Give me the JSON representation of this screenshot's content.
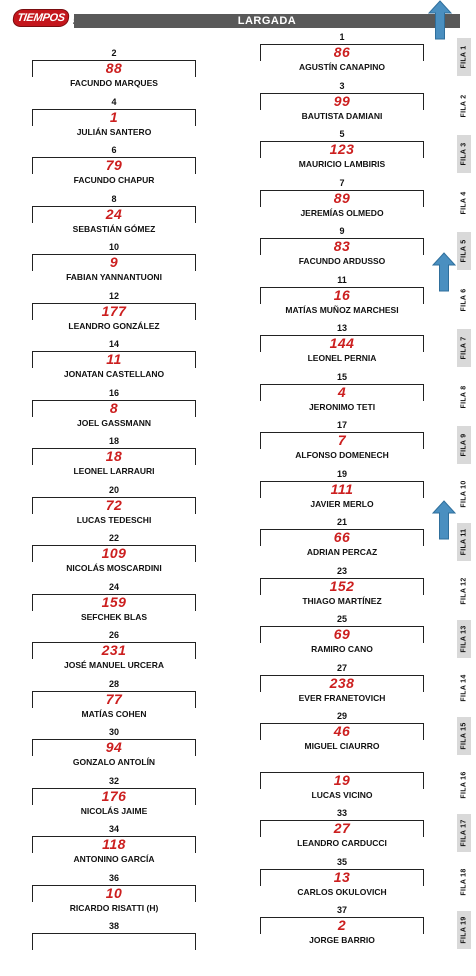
{
  "header": {
    "logo_text": "TIEMPOS",
    "title": "LARGADA"
  },
  "colors": {
    "car_number": "#cc1f1f",
    "header_bar": "#595959",
    "arrow": "#4a8fc0",
    "fila_shade": "#d9d9d9"
  },
  "grid": [
    {
      "pos": "1",
      "num": "86",
      "name": "AGUSTÍN CANAPINO"
    },
    {
      "pos": "2",
      "num": "88",
      "name": "FACUNDO MARQUES"
    },
    {
      "pos": "3",
      "num": "99",
      "name": "BAUTISTA DAMIANI"
    },
    {
      "pos": "4",
      "num": "1",
      "name": "JULIÁN SANTERO"
    },
    {
      "pos": "5",
      "num": "123",
      "name": "MAURICIO LAMBIRIS"
    },
    {
      "pos": "6",
      "num": "79",
      "name": "FACUNDO CHAPUR"
    },
    {
      "pos": "7",
      "num": "89",
      "name": "JEREMÍAS OLMEDO"
    },
    {
      "pos": "8",
      "num": "24",
      "name": "SEBASTIÁN GÓMEZ"
    },
    {
      "pos": "9",
      "num": "83",
      "name": "FACUNDO ARDUSSO"
    },
    {
      "pos": "10",
      "num": "9",
      "name": "FABIAN YANNANTUONI"
    },
    {
      "pos": "11",
      "num": "16",
      "name": "MATÍAS MUÑOZ MARCHESI"
    },
    {
      "pos": "12",
      "num": "177",
      "name": "LEANDRO GONZÁLEZ"
    },
    {
      "pos": "13",
      "num": "144",
      "name": "LEONEL PERNIA"
    },
    {
      "pos": "14",
      "num": "11",
      "name": "JONATAN CASTELLANO"
    },
    {
      "pos": "15",
      "num": "4",
      "name": "JERONIMO TETI"
    },
    {
      "pos": "16",
      "num": "8",
      "name": "JOEL GASSMANN"
    },
    {
      "pos": "17",
      "num": "7",
      "name": "ALFONSO DOMENECH"
    },
    {
      "pos": "18",
      "num": "18",
      "name": "LEONEL LARRAURI"
    },
    {
      "pos": "19",
      "num": "111",
      "name": "JAVIER MERLO"
    },
    {
      "pos": "20",
      "num": "72",
      "name": "LUCAS TEDESCHI"
    },
    {
      "pos": "21",
      "num": "66",
      "name": "ADRIAN PERCAZ"
    },
    {
      "pos": "22",
      "num": "109",
      "name": "NICOLÁS MOSCARDINI"
    },
    {
      "pos": "23",
      "num": "152",
      "name": "THIAGO MARTÍNEZ"
    },
    {
      "pos": "24",
      "num": "159",
      "name": "SEFCHEK BLAS"
    },
    {
      "pos": "25",
      "num": "69",
      "name": "RAMIRO CANO"
    },
    {
      "pos": "26",
      "num": "231",
      "name": "JOSÉ MANUEL URCERA"
    },
    {
      "pos": "27",
      "num": "238",
      "name": "EVER FRANETOVICH"
    },
    {
      "pos": "28",
      "num": "77",
      "name": "MATÍAS COHEN"
    },
    {
      "pos": "29",
      "num": "46",
      "name": "MIGUEL CIAURRO"
    },
    {
      "pos": "30",
      "num": "94",
      "name": "GONZALO ANTOLÍN"
    },
    {
      "pos": "",
      "num": "19",
      "name": "LUCAS VICINO"
    },
    {
      "pos": "32",
      "num": "176",
      "name": "NICOLÁS JAIME"
    },
    {
      "pos": "33",
      "num": "27",
      "name": "LEANDRO CARDUCCI"
    },
    {
      "pos": "34",
      "num": "118",
      "name": "ANTONINO GARCÍA"
    },
    {
      "pos": "35",
      "num": "13",
      "name": "CARLOS OKULOVICH"
    },
    {
      "pos": "36",
      "num": "10",
      "name": "RICARDO RISATTI (H)"
    },
    {
      "pos": "37",
      "num": "2",
      "name": "JORGE BARRIO"
    },
    {
      "pos": "38",
      "num": "",
      "name": ""
    }
  ],
  "filas": [
    "FILA 1",
    "FILA 2",
    "FILA 3",
    "FILA 4",
    "FILA 5",
    "FILA 6",
    "FILA 7",
    "FILA 8",
    "FILA 9",
    "FILA 10",
    "FILA 11",
    "FILA 12",
    "FILA 13",
    "FILA 14",
    "FILA 15",
    "FILA 16",
    "FILA 17",
    "FILA 18",
    "FILA 19"
  ]
}
